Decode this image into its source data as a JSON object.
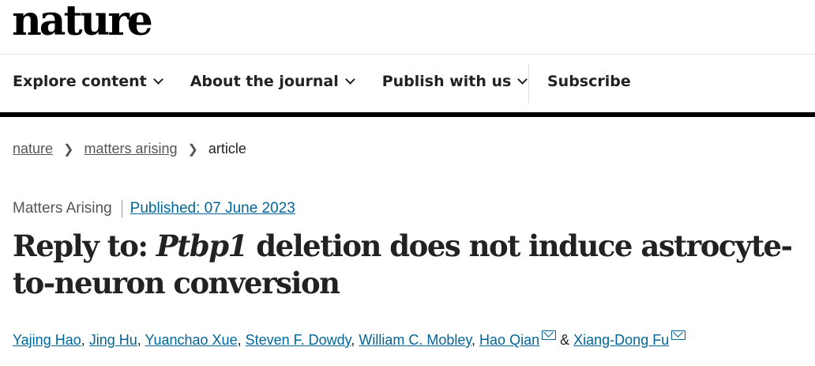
{
  "logo": "nature",
  "nav": {
    "items": [
      "Explore content",
      "About the journal",
      "Publish with us"
    ],
    "subscribe": "Subscribe"
  },
  "breadcrumb": [
    "nature",
    "matters arising",
    "article"
  ],
  "meta": {
    "type": "Matters Arising",
    "published": "Published: 07 June 2023"
  },
  "title": {
    "prefix": "Reply to: ",
    "gene": "Ptbp1",
    "rest": " deletion does not induce astrocyte-to-neuron conversion"
  },
  "authors": [
    "Yajing Hao",
    "Jing Hu",
    "Yuanchao Xue",
    "Steven F. Dowdy",
    "William C. Mobley",
    "Hao Qian",
    "Xiang-Dong Fu"
  ],
  "authors_and": "&"
}
